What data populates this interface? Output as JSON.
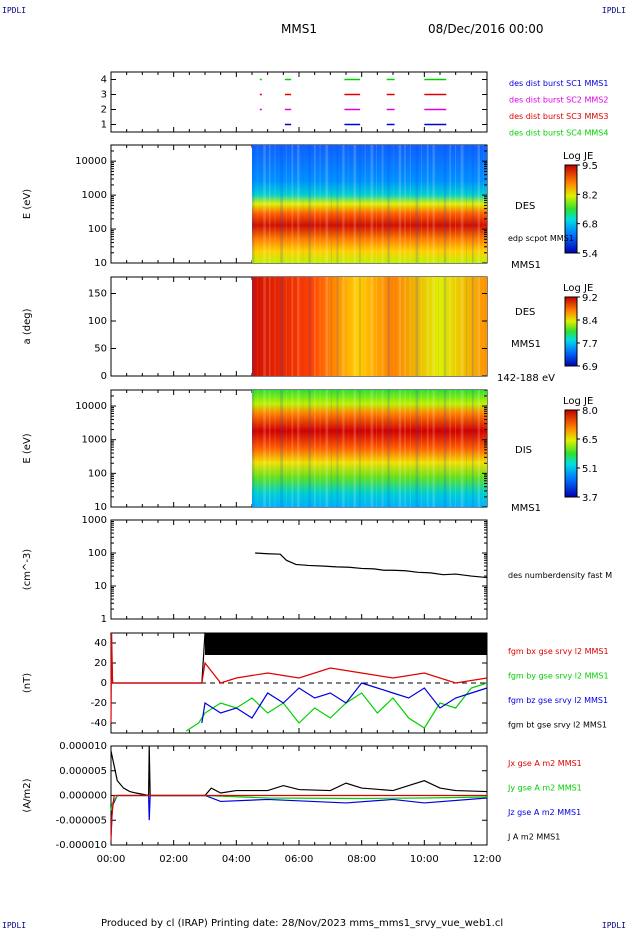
{
  "corner_label": "IPDLI",
  "header": {
    "spacecraft": "MMS1",
    "date": "08/Dec/2016 00:00"
  },
  "footer": {
    "text": "Produced by cl (IRAP)   Printing date: 28/Nov/2023   mms_mms1_srvy_vue_web1.cl"
  },
  "x_axis": {
    "ticks": [
      "00:00",
      "02:00",
      "04:00",
      "06:00",
      "08:00",
      "10:00",
      "12:00"
    ],
    "range_hours": [
      0,
      12
    ]
  },
  "colors": {
    "red": "#e00000",
    "magenta": "#e000e0",
    "green": "#00d000",
    "blue": "#0000e0",
    "black": "#000000",
    "navy": "#0000a0"
  },
  "chart_data": [
    {
      "type": "line",
      "panel": "burst",
      "yticks": [
        "1",
        "2",
        "3",
        "4"
      ],
      "ylim": [
        0.5,
        4.5
      ],
      "legend": [
        {
          "label": "des dist burst SC1 MMS1",
          "color": "#0000e0"
        },
        {
          "label": "des dist burst SC2 MMS2",
          "color": "#e000e0"
        },
        {
          "label": "des dist burst SC3 MMS3",
          "color": "#e00000"
        },
        {
          "label": "des dist burst SC4 MMS4",
          "color": "#00d000"
        }
      ],
      "series": [
        {
          "level": 4,
          "color": "#00d000",
          "intervals": [
            [
              4.75,
              4.78
            ],
            [
              5.55,
              5.75
            ],
            [
              7.45,
              7.95
            ],
            [
              8.8,
              9.05
            ],
            [
              10.0,
              10.7
            ]
          ]
        },
        {
          "level": 3,
          "color": "#e00000",
          "intervals": [
            [
              4.75,
              4.78
            ],
            [
              5.55,
              5.75
            ],
            [
              7.45,
              7.95
            ],
            [
              8.8,
              9.05
            ],
            [
              10.0,
              10.7
            ]
          ]
        },
        {
          "level": 2,
          "color": "#e000e0",
          "intervals": [
            [
              4.75,
              4.78
            ],
            [
              5.55,
              5.75
            ],
            [
              7.45,
              7.95
            ],
            [
              8.8,
              9.05
            ],
            [
              10.0,
              10.7
            ]
          ]
        },
        {
          "level": 1,
          "color": "#0000e0",
          "intervals": [
            [
              5.55,
              5.75
            ],
            [
              7.45,
              7.95
            ],
            [
              8.8,
              9.05
            ],
            [
              10.0,
              10.7
            ]
          ]
        }
      ]
    },
    {
      "type": "heatmap",
      "panel": "des_energy",
      "ylabel": "E (eV)",
      "yticks": [
        "10",
        "100",
        "1000",
        "10000"
      ],
      "ylim": [
        10,
        30000
      ],
      "data_start_hours": 4.5,
      "labels": [
        "DES",
        "edp scpot MMS1",
        "MMS1"
      ],
      "colorbar": {
        "title": "Log JE",
        "ticks": [
          "9.5",
          "8.2",
          "6.8",
          "5.4"
        ],
        "range": [
          5.4,
          9.5
        ]
      }
    },
    {
      "type": "heatmap",
      "panel": "des_pitch",
      "ylabel": "a (deg)",
      "yticks": [
        "0",
        "50",
        "100",
        "150"
      ],
      "ylim": [
        0,
        180
      ],
      "data_start_hours": 4.5,
      "labels": [
        "DES",
        "MMS1",
        "142-188 eV"
      ],
      "colorbar": {
        "title": "Log JE",
        "ticks": [
          "9.2",
          "8.4",
          "7.7",
          "6.9"
        ],
        "range": [
          6.9,
          9.2
        ]
      }
    },
    {
      "type": "heatmap",
      "panel": "dis_energy",
      "ylabel": "E (eV)",
      "yticks": [
        "10",
        "100",
        "1000",
        "10000"
      ],
      "ylim": [
        10,
        30000
      ],
      "data_start_hours": 4.5,
      "labels": [
        "DIS",
        "MMS1"
      ],
      "colorbar": {
        "title": "Log JE",
        "ticks": [
          "8.0",
          "6.5",
          "5.1",
          "3.7"
        ],
        "range": [
          3.7,
          8.0
        ]
      }
    },
    {
      "type": "line",
      "panel": "density",
      "ylabel": "(cm^-3)",
      "yticks": [
        "1",
        "10",
        "100",
        "1000"
      ],
      "ylim": [
        1,
        1000
      ],
      "log": true,
      "legend": [
        {
          "label": "des numberdensity fast M",
          "color": "#000000"
        }
      ],
      "series": [
        {
          "name": "des numberdensity fast M",
          "color": "#000000",
          "x": [
            4.6,
            5.0,
            5.4,
            5.6,
            5.9,
            6.3,
            6.8,
            7.2,
            7.6,
            8.0,
            8.4,
            8.7,
            9.0,
            9.4,
            9.8,
            10.2,
            10.6,
            11.0,
            11.5,
            12.0
          ],
          "y": [
            100,
            95,
            92,
            60,
            45,
            42,
            40,
            38,
            37,
            34,
            33,
            30,
            30,
            29,
            26,
            25,
            22,
            23,
            20,
            18
          ]
        }
      ]
    },
    {
      "type": "line",
      "panel": "fgm",
      "ylabel": "(nT)",
      "yticks": [
        "-40",
        "-20",
        "0",
        "20",
        "40"
      ],
      "ylim": [
        -50,
        50
      ],
      "legend": [
        {
          "label": "fgm bx gse srvy l2 MMS1",
          "color": "#e00000"
        },
        {
          "label": "fgm by gse srvy l2 MMS1",
          "color": "#00d000"
        },
        {
          "label": "fgm bz gse srvy l2 MMS1",
          "color": "#0000e0"
        },
        {
          "label": "fgm bt gse srvy l2 MMS1",
          "color": "#000000"
        }
      ],
      "series": [
        {
          "name": "fgm bt gse srvy l2 MMS1",
          "color": "#000000",
          "x": [
            0.0,
            0.05,
            2.9,
            3.0,
            3.5,
            4.0,
            4.5,
            5.0,
            5.5,
            6.0,
            6.5,
            7.0,
            7.5,
            8.0,
            8.5,
            9.0,
            9.5,
            10.0,
            10.5,
            11.0,
            11.5,
            12.0
          ],
          "y": [
            50,
            0,
            0,
            50,
            45,
            40,
            42,
            38,
            40,
            36,
            38,
            40,
            35,
            42,
            38,
            40,
            37,
            44,
            39,
            41,
            36,
            38
          ]
        },
        {
          "name": "fgm by gse srvy l2 MMS1",
          "color": "#00d000",
          "x": [
            2.4,
            2.8,
            3.0,
            3.5,
            4.0,
            4.5,
            5.0,
            5.5,
            6.0,
            6.5,
            7.0,
            7.5,
            8.0,
            8.5,
            9.0,
            9.5,
            10.0,
            10.5,
            11.0,
            11.5,
            12.0
          ],
          "y": [
            -48,
            -40,
            -30,
            -20,
            -25,
            -15,
            -30,
            -20,
            -40,
            -25,
            -35,
            -20,
            -10,
            -30,
            -15,
            -35,
            -45,
            -20,
            -25,
            -5,
            0
          ]
        },
        {
          "name": "fgm bz gse srvy l2 MMS1",
          "color": "#0000e0",
          "x": [
            2.9,
            3.0,
            3.5,
            4.0,
            4.5,
            5.0,
            5.5,
            6.0,
            6.5,
            7.0,
            7.5,
            8.0,
            8.5,
            9.0,
            9.5,
            10.0,
            10.5,
            11.0,
            11.5,
            12.0
          ],
          "y": [
            -40,
            -20,
            -30,
            -25,
            -35,
            -10,
            -20,
            -5,
            -15,
            -10,
            -20,
            0,
            -5,
            -10,
            -15,
            -5,
            -25,
            -15,
            -10,
            -5
          ]
        },
        {
          "name": "fgm bx gse srvy l2 MMS1",
          "color": "#e00000",
          "x": [
            0.0,
            0.02,
            0.05,
            2.9,
            3.0,
            3.5,
            4.0,
            5.0,
            6.0,
            7.0,
            8.0,
            9.0,
            10.0,
            11.0,
            12.0
          ],
          "y": [
            -40,
            50,
            0,
            0,
            20,
            0,
            5,
            10,
            5,
            15,
            10,
            5,
            10,
            0,
            5
          ]
        }
      ]
    },
    {
      "type": "line",
      "panel": "current",
      "ylabel": "(A/m2)",
      "yticks": [
        "0.000010",
        "0.000005",
        "0.000000",
        "-0.000005",
        "-0.000010"
      ],
      "ylim": [
        -1e-05,
        1e-05
      ],
      "legend": [
        {
          "label": "Jx gse A m2 MMS1",
          "color": "#e00000"
        },
        {
          "label": "Jy gse A m2 MMS1",
          "color": "#00d000"
        },
        {
          "label": "Jz gse A m2 MMS1",
          "color": "#0000e0"
        },
        {
          "label": "J A m2 MMS1",
          "color": "#000000"
        }
      ],
      "series": [
        {
          "name": "J A m2 MMS1",
          "color": "#000000",
          "x": [
            0.0,
            0.1,
            0.2,
            0.4,
            0.6,
            0.8,
            1.2,
            1.22,
            1.25,
            3.0,
            3.2,
            3.5,
            4.0,
            5.0,
            5.5,
            6.0,
            7.0,
            7.5,
            8.0,
            9.0,
            9.5,
            10.0,
            10.5,
            11.0,
            12.0
          ],
          "y": [
            9e-06,
            6e-06,
            3e-06,
            1.5e-06,
            8e-07,
            5e-07,
            0.0,
            1e-05,
            0.0,
            0.0,
            1.5e-06,
            5e-07,
            1e-06,
            1e-06,
            2e-06,
            1.2e-06,
            1e-06,
            2.5e-06,
            1.5e-06,
            1e-06,
            2e-06,
            3e-06,
            1.5e-06,
            1e-06,
            8e-07
          ]
        },
        {
          "name": "Jz gse A m2 MMS1",
          "color": "#0000e0",
          "x": [
            0.0,
            0.05,
            0.2,
            1.2,
            1.22,
            1.25,
            3.0,
            3.5,
            5.0,
            7.5,
            9.0,
            10.0,
            12.0
          ],
          "y": [
            -8e-06,
            -2e-06,
            0.0,
            0.0,
            -5e-06,
            0.0,
            0.0,
            -1.2e-06,
            -8e-07,
            -1.5e-06,
            -8e-07,
            -1.5e-06,
            -5e-07
          ]
        },
        {
          "name": "Jy gse A m2 MMS1",
          "color": "#00d000",
          "x": [
            0.0,
            0.05,
            0.2,
            3.0,
            5.0,
            8.0,
            10.0,
            12.0
          ],
          "y": [
            -3e-06,
            -1.5e-06,
            0.0,
            0.0,
            -5e-07,
            -6e-07,
            -5e-07,
            -3e-07
          ]
        },
        {
          "name": "Jx gse A m2 MMS1",
          "color": "#e00000",
          "x": [
            0.0,
            0.03,
            0.1,
            12.0
          ],
          "y": [
            -9e-06,
            -4e-06,
            0.0,
            0.0
          ]
        }
      ]
    }
  ]
}
